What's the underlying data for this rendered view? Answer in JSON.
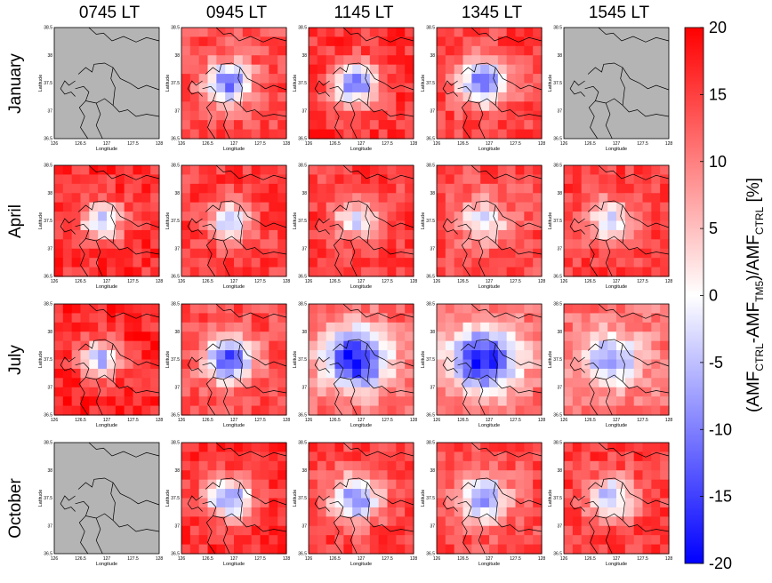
{
  "chart_data": {
    "type": "heatmap",
    "columns": [
      "0745 LT",
      "0945 LT",
      "1145 LT",
      "1345 LT",
      "1545 LT"
    ],
    "rows": [
      "January",
      "April",
      "July",
      "October"
    ],
    "xlabel": "Longitude",
    "ylabel": "Latitude",
    "xticks": [
      "126",
      "126.5",
      "127",
      "127.5",
      "128"
    ],
    "yticks": [
      "36.5",
      "37",
      "37.5",
      "38",
      "38.5"
    ],
    "xlim": [
      126,
      128
    ],
    "ylim": [
      36.5,
      38.5
    ],
    "colorbar": {
      "label_parts": [
        "(AMF",
        "CTRL",
        "-AMF",
        "TM5",
        ")/AMF",
        "CTRL",
        " [%]"
      ],
      "ticks": [
        "20",
        "15",
        "10",
        "5",
        "0",
        "-5",
        "-10",
        "-15",
        "-20"
      ],
      "range": [
        -20,
        20
      ],
      "colors": {
        "max": "#ff0000",
        "mid": "#ffffff",
        "min": "#0000ff"
      }
    },
    "panels": [
      {
        "row": 0,
        "col": 0,
        "no_data": true
      },
      {
        "row": 0,
        "col": 1,
        "bg_value": 14,
        "center_value": -12,
        "spread": 0.9
      },
      {
        "row": 0,
        "col": 2,
        "bg_value": 16,
        "center_value": -13,
        "spread": 0.9
      },
      {
        "row": 0,
        "col": 3,
        "bg_value": 15,
        "center_value": -12,
        "spread": 1.0
      },
      {
        "row": 0,
        "col": 4,
        "no_data": true
      },
      {
        "row": 1,
        "col": 0,
        "bg_value": 16,
        "center_value": -6,
        "spread": 0.8
      },
      {
        "row": 1,
        "col": 1,
        "bg_value": 15,
        "center_value": -4,
        "spread": 0.8
      },
      {
        "row": 1,
        "col": 2,
        "bg_value": 15,
        "center_value": -3,
        "spread": 0.8
      },
      {
        "row": 1,
        "col": 3,
        "bg_value": 14,
        "center_value": -3,
        "spread": 0.9
      },
      {
        "row": 1,
        "col": 4,
        "bg_value": 15,
        "center_value": -3,
        "spread": 0.9
      },
      {
        "row": 2,
        "col": 0,
        "bg_value": 17,
        "center_value": -6,
        "spread": 0.8
      },
      {
        "row": 2,
        "col": 1,
        "bg_value": 14,
        "center_value": -14,
        "spread": 1.0
      },
      {
        "row": 2,
        "col": 2,
        "bg_value": 13,
        "center_value": -19,
        "spread": 1.4
      },
      {
        "row": 2,
        "col": 3,
        "bg_value": 12,
        "center_value": -19,
        "spread": 1.4
      },
      {
        "row": 2,
        "col": 4,
        "bg_value": 11,
        "center_value": -10,
        "spread": 1.1
      },
      {
        "row": 3,
        "col": 0,
        "no_data": true
      },
      {
        "row": 3,
        "col": 1,
        "bg_value": 16,
        "center_value": -10,
        "spread": 0.9
      },
      {
        "row": 3,
        "col": 2,
        "bg_value": 15,
        "center_value": -10,
        "spread": 1.0
      },
      {
        "row": 3,
        "col": 3,
        "bg_value": 14,
        "center_value": -9,
        "spread": 1.0
      },
      {
        "row": 3,
        "col": 4,
        "bg_value": 15,
        "center_value": -7,
        "spread": 0.9
      }
    ]
  }
}
